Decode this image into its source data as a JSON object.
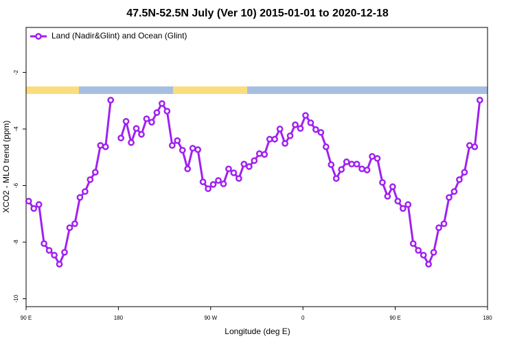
{
  "chart_data": {
    "type": "line",
    "title": "47.5N-52.5N July (Ver 10)   2015-01-01 to 2020-12-18",
    "x_label": "Longitude (deg E)",
    "y_label": "XCO2 - MLO trend (ppm)",
    "x": [
      92.5,
      97.5,
      102.5,
      107.5,
      112.5,
      117.5,
      122.5,
      127.5,
      132.5,
      137.5,
      142.5,
      147.5,
      152.5,
      157.5,
      162.5,
      167.5,
      172.5,
      177.5,
      182.5,
      187.5,
      192.5,
      197.5,
      202.5,
      207.5,
      212.5,
      217.5,
      222.5,
      227.5,
      232.5,
      237.5,
      242.5,
      247.5,
      252.5,
      257.5,
      262.5,
      267.5,
      272.5,
      277.5,
      282.5,
      287.5,
      292.5,
      297.5,
      302.5,
      307.5,
      312.5,
      317.5,
      322.5,
      327.5,
      332.5,
      337.5,
      342.5,
      347.5,
      352.5,
      357.5,
      362.5,
      367.5,
      372.5,
      377.5,
      382.5,
      387.5,
      392.5,
      397.5,
      402.5,
      407.5,
      412.5,
      417.5,
      422.5,
      427.5,
      432.5,
      437.5,
      442.5,
      447.5,
      452.5,
      457.5,
      462.5,
      467.5,
      472.5,
      477.5,
      482.5,
      487.5,
      492.5,
      497.5,
      502.5,
      507.5,
      512.5,
      517.5,
      522.5,
      527.5,
      532.5
    ],
    "series": [
      {
        "name": "Land (Nadir&Glint) and Ocean (Glint)",
        "color": "#a020f0",
        "values": [
          -6.55,
          -6.81,
          -6.67,
          -8.05,
          -8.29,
          -8.46,
          -8.78,
          -8.36,
          -7.49,
          -7.35,
          -6.42,
          -6.21,
          -5.79,
          -5.53,
          -4.58,
          -4.63,
          -2.98,
          null,
          -4.32,
          -3.73,
          -4.48,
          -3.98,
          -4.19,
          -3.64,
          -3.76,
          -3.42,
          -3.1,
          -3.37,
          -4.58,
          -4.41,
          -4.75,
          -5.41,
          -4.68,
          -4.73,
          -5.87,
          -6.11,
          -5.96,
          -5.82,
          -5.94,
          -5.41,
          -5.55,
          -5.75,
          -5.24,
          -5.33,
          -5.12,
          -4.87,
          -4.9,
          -4.36,
          -4.36,
          -4.0,
          -4.51,
          -4.24,
          -3.85,
          -3.98,
          -3.52,
          -3.78,
          -4.02,
          -4.12,
          -4.63,
          -5.26,
          -5.75,
          -5.43,
          -5.16,
          -5.24,
          -5.24,
          -5.41,
          -5.45,
          -4.97,
          -5.04,
          -5.89,
          -6.38,
          -6.04,
          -6.55,
          -6.81,
          -6.67,
          -8.05,
          -8.29,
          -8.46,
          -8.78,
          -8.36,
          -7.49,
          -7.35,
          -6.42,
          -6.21,
          -5.79,
          -5.53,
          -4.58,
          -4.63,
          -2.98
        ]
      }
    ],
    "xlim": [
      90,
      540
    ],
    "xticks": [
      {
        "value": 90,
        "label": "90 E"
      },
      180,
      {
        "value": 270,
        "label": "90 W"
      },
      {
        "value": 360,
        "label": "0"
      },
      {
        "value": 450,
        "label": "90 E"
      },
      {
        "value": 540,
        "label": "180"
      }
    ],
    "ylim": [
      -10.28,
      -0.41
    ],
    "yticks": [
      -10,
      -8,
      -6,
      -4,
      -2
    ],
    "legend": "top-left"
  }
}
